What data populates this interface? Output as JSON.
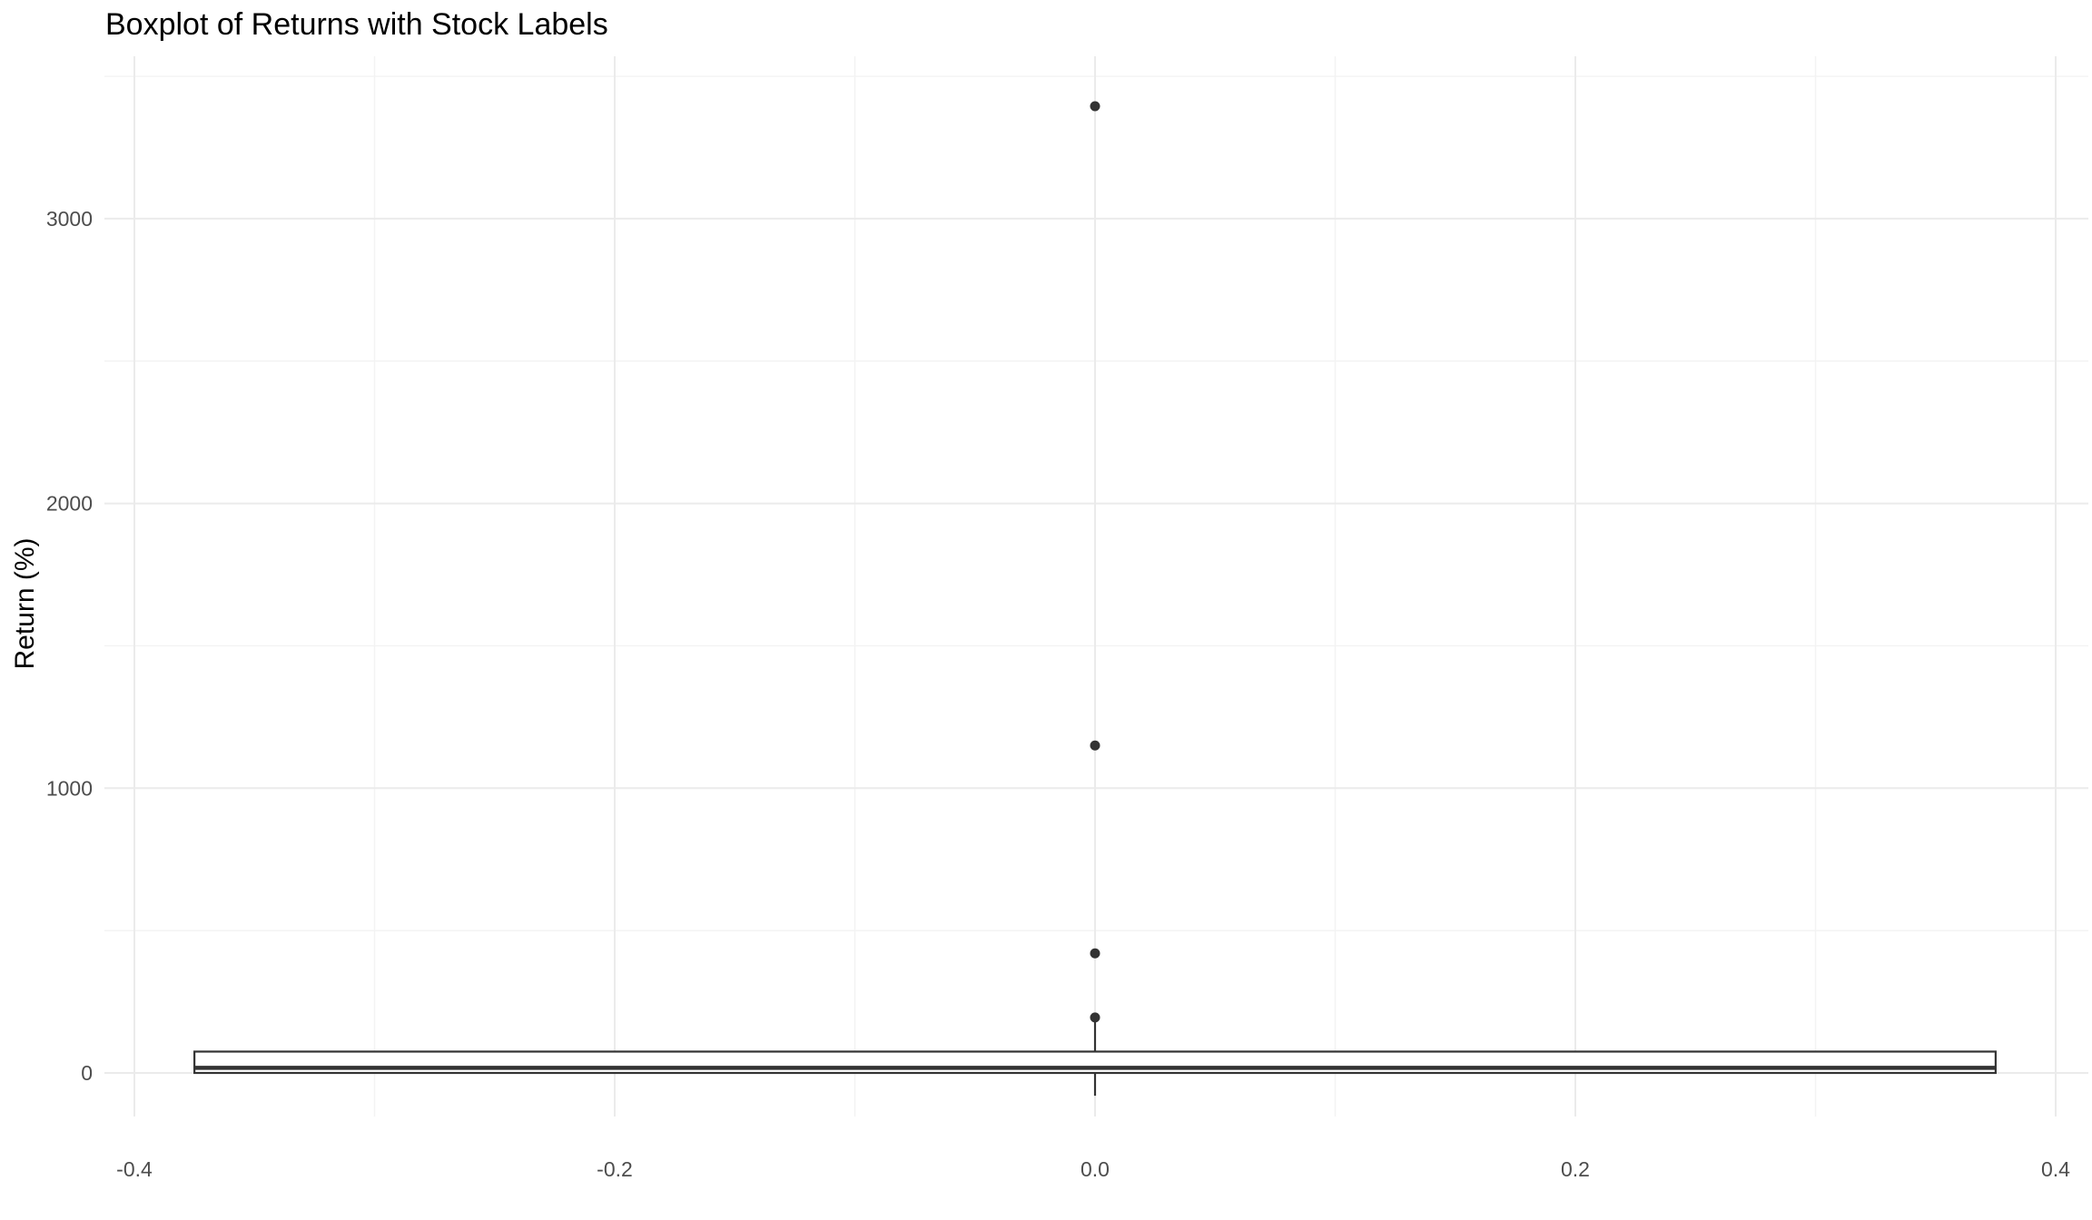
{
  "chart_data": {
    "type": "boxplot",
    "title": "Boxplot of Returns with Stock Labels",
    "xlabel": "",
    "ylabel": "Return (%)",
    "xlim": [
      -0.4,
      0.4
    ],
    "ylim": [
      -200,
      3500
    ],
    "x_ticks": [
      "-0.4",
      "-0.2",
      "0.0",
      "0.2",
      "0.4"
    ],
    "y_ticks": [
      "0",
      "1000",
      "2000",
      "3000"
    ],
    "x_tick_values": [
      -0.4,
      -0.2,
      0.0,
      0.2,
      0.4
    ],
    "y_tick_values": [
      0,
      1000,
      2000,
      3000
    ],
    "grid": true,
    "box": {
      "x": 0.0,
      "x_min": -0.375,
      "x_max": 0.375,
      "lower_whisker": -80,
      "q1": 0,
      "median": 18,
      "q3": 75,
      "upper_whisker": 195
    },
    "outliers": [
      195,
      420,
      1150,
      3395
    ]
  }
}
